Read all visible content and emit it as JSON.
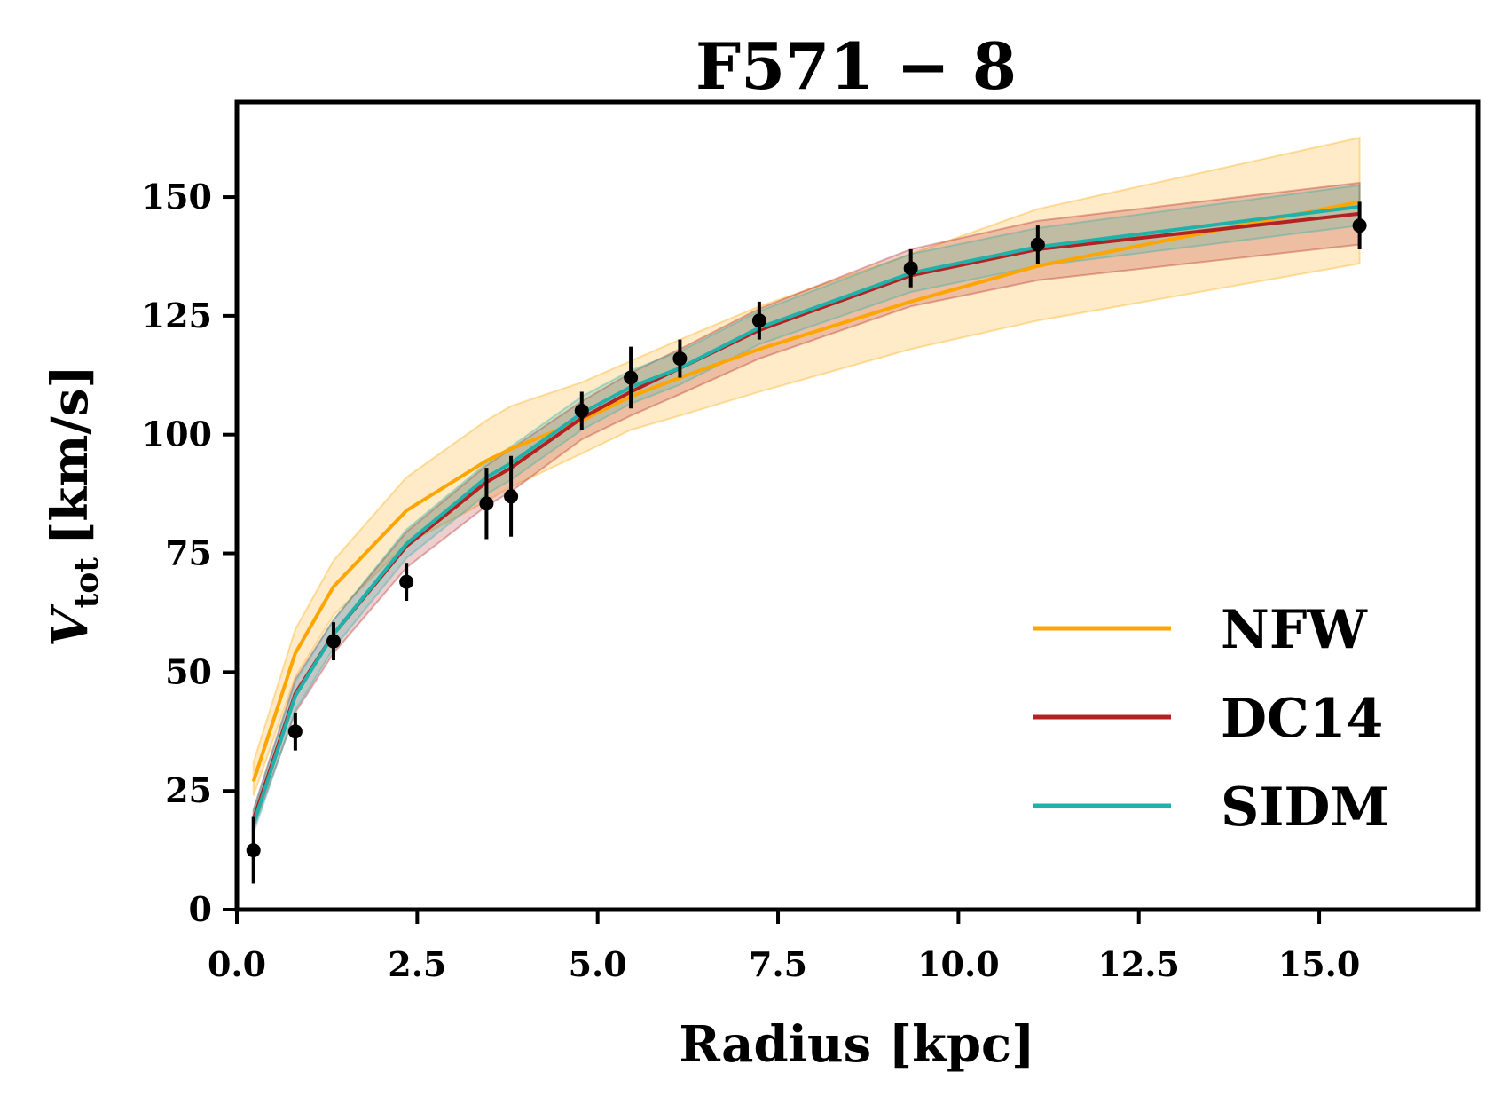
{
  "chart_data": {
    "type": "line",
    "title": "F571 − 8",
    "xlabel": "Radius [kpc]",
    "ylabel_main": "V",
    "ylabel_sub": "tot",
    "ylabel_unit": "[km/s]",
    "xlim": [
      0,
      17.2
    ],
    "ylim": [
      0,
      170
    ],
    "xticks": [
      0.0,
      2.5,
      5.0,
      7.5,
      10.0,
      12.5,
      15.0
    ],
    "xtick_labels": [
      "0.0",
      "2.5",
      "5.0",
      "7.5",
      "10.0",
      "12.5",
      "15.0"
    ],
    "yticks": [
      0,
      25,
      50,
      75,
      100,
      125,
      150
    ],
    "ytick_labels": [
      "0",
      "25",
      "50",
      "75",
      "100",
      "125",
      "150"
    ],
    "grid": false,
    "legend_position": "lower-right",
    "x": [
      0.23,
      0.81,
      1.34,
      2.35,
      3.46,
      3.8,
      4.78,
      5.46,
      6.14,
      7.24,
      9.34,
      11.1,
      15.56
    ],
    "observed": {
      "y": [
        12.5,
        37.5,
        56.5,
        69,
        85.5,
        87,
        105,
        112,
        116,
        124,
        135,
        140,
        144
      ],
      "yerr": [
        7,
        4,
        4,
        4,
        7.5,
        8.5,
        4,
        6.5,
        4,
        4,
        4,
        4,
        5
      ],
      "color": "#000000"
    },
    "series": [
      {
        "name": "NFW",
        "color": "#FFA500",
        "y": [
          27,
          54,
          68,
          84,
          94.5,
          97,
          103,
          108,
          112,
          118,
          128,
          135.5,
          149
        ],
        "y_low": [
          24,
          49,
          62,
          77,
          86,
          89,
          96,
          101,
          104,
          109,
          118,
          124,
          136
        ],
        "y_high": [
          31,
          59,
          73.5,
          91,
          103,
          106,
          111,
          115.5,
          120,
          127,
          138,
          147.5,
          162.5
        ]
      },
      {
        "name": "DC14",
        "color": "#B22222",
        "y": [
          19,
          45.5,
          58,
          76.5,
          90,
          93,
          103.5,
          109,
          114,
          122,
          133.5,
          139,
          146.5
        ],
        "y_low": [
          17,
          41.5,
          54,
          72,
          85,
          88,
          99,
          104,
          108.5,
          116,
          127,
          132.5,
          140
        ],
        "y_high": [
          21,
          48.5,
          61,
          79.5,
          93.5,
          97,
          107,
          113,
          118,
          126.5,
          139,
          145,
          153
        ]
      },
      {
        "name": "SIDM",
        "color": "#20B2AA",
        "y": [
          18,
          45,
          58,
          77,
          91,
          94,
          104.5,
          110,
          114,
          122.5,
          134,
          139.5,
          148
        ],
        "y_low": [
          16,
          42,
          55,
          74,
          87.5,
          90.5,
          101,
          106.5,
          110.5,
          119,
          130,
          135.5,
          144
        ],
        "y_high": [
          21,
          48,
          61,
          80,
          94,
          97.5,
          108,
          113.5,
          117.5,
          126,
          138,
          143.5,
          152.5
        ]
      }
    ]
  }
}
